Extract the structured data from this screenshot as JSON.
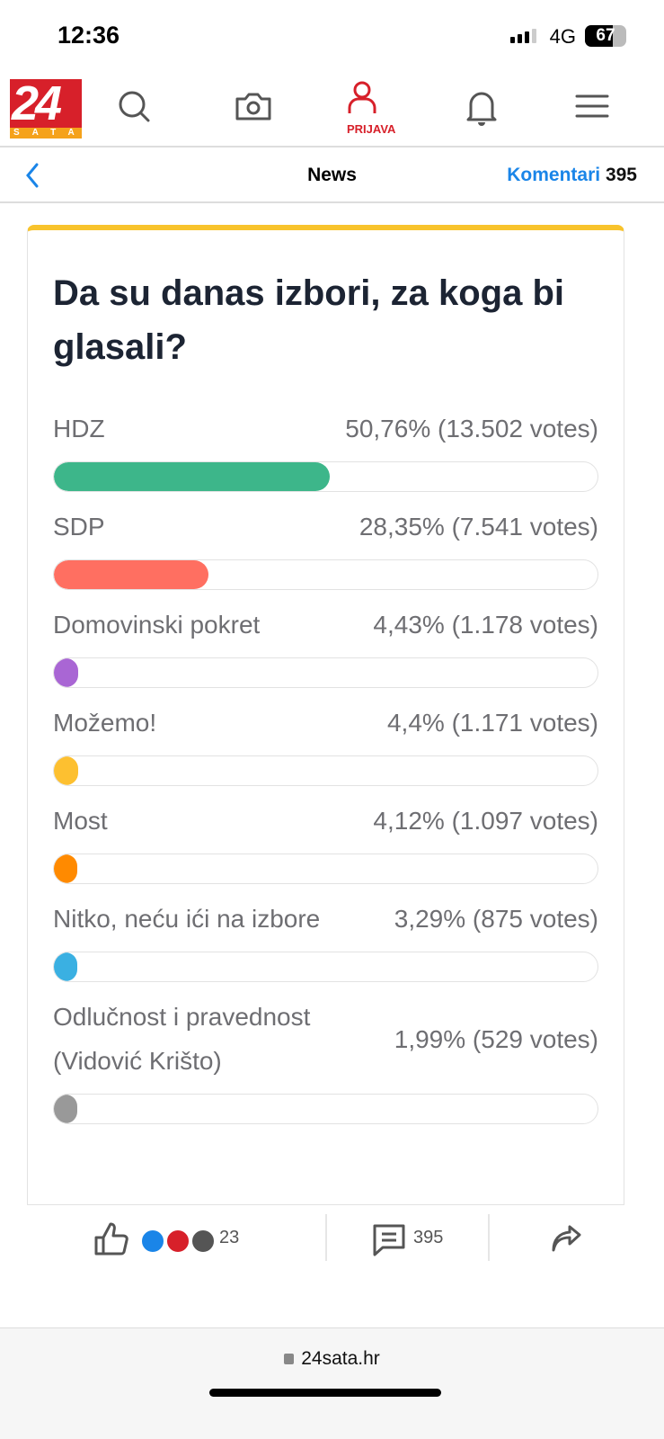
{
  "status_bar": {
    "time": "12:36",
    "network": "4G",
    "battery": "67"
  },
  "nav": {
    "logo_top": "24",
    "logo_bottom": "SATA",
    "login_label": "PRIJAVA"
  },
  "subnav": {
    "title": "News",
    "comments_label": "Komentari",
    "comments_count": "395"
  },
  "poll": {
    "question": "Da su danas izbori, za koga bi glasali?",
    "options": [
      {
        "label": "HDZ",
        "result": "50,76% (13.502 votes)",
        "percent": 50.76,
        "color": "#3db68a"
      },
      {
        "label": "SDP",
        "result": "28,35% (7.541 votes)",
        "percent": 28.35,
        "color": "#ff6f61"
      },
      {
        "label": "Domovinski pokret",
        "result": "4,43% (1.178 votes)",
        "percent": 4.43,
        "color": "#a966d4"
      },
      {
        "label": "Možemo!",
        "result": "4,4% (1.171 votes)",
        "percent": 4.4,
        "color": "#fdc030"
      },
      {
        "label": "Most",
        "result": "4,12% (1.097 votes)",
        "percent": 4.12,
        "color": "#ff8a00"
      },
      {
        "label": "Nitko, neću ići na izbore",
        "result": "3,29% (875 votes)",
        "percent": 3.29,
        "color": "#3ab0e2"
      },
      {
        "label": "Odlučnost i pravednost (Vidović Krišto)",
        "result": "1,99% (529 votes)",
        "percent": 1.99,
        "color": "#999999"
      }
    ]
  },
  "footer": {
    "reactions_count": "23",
    "comments_count": "395"
  },
  "browser": {
    "url": "24sata.hr"
  }
}
